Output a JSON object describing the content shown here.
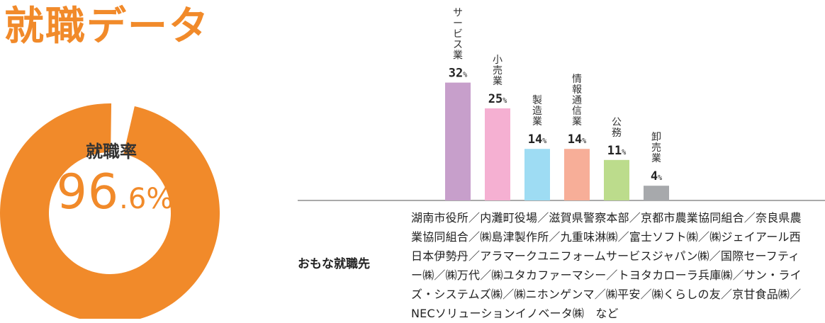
{
  "title": "就職データ",
  "colors": {
    "accent": "#f18a2a",
    "bar_colors": [
      "#c79fcb",
      "#f5b0d2",
      "#9edcf3",
      "#f7ae98",
      "#bcdc8c",
      "#a7a9ac"
    ]
  },
  "employment_rate": {
    "label": "就職率",
    "value_main": "96",
    "value_decimal": ".6%",
    "value": 96.6
  },
  "chart_data": [
    {
      "type": "pie",
      "values": [
        96.6,
        3.4
      ],
      "categories": [
        "就職率",
        ""
      ]
    },
    {
      "type": "bar",
      "categories": [
        "サービス業",
        "小売業",
        "製造業",
        "情報通信業",
        "公務",
        "卸売業"
      ],
      "values": [
        32,
        25,
        14,
        14,
        11,
        4
      ],
      "value_unit": "%"
    }
  ],
  "companies": {
    "label": "おもな就職先",
    "text": "湖南市役所／内灘町役場／滋賀県警察本部／京都市農業協同組合／奈良県農業協同組合／㈱島津製作所／九重味淋㈱／富士ソフト㈱／㈱ジェイアール西日本伊勢丹／アラマークユニフォームサービスジャパン㈱／国際セーフティー㈱／㈱万代／㈱ユタカファーマシー／トヨタカローラ兵庫㈱／サン・ライズ・システムズ㈱／㈱ニホンゲンマ／㈱平安／㈱くらしの友／京甘食品㈱／NECソリューションイノベータ㈱　など"
  }
}
